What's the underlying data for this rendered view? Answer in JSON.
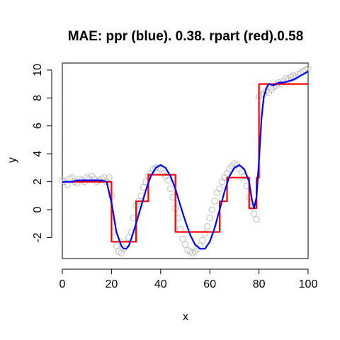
{
  "chart_data": {
    "type": "scatter",
    "title": "MAE: ppr (blue). 0.38.  rpart (red).0.58",
    "xlabel": "x",
    "ylabel": "y",
    "xlim": [
      0,
      100
    ],
    "ylim": [
      -3.5,
      10.5
    ],
    "xticks": [
      0,
      20,
      40,
      60,
      80,
      100
    ],
    "yticks": [
      -2,
      0,
      2,
      4,
      6,
      8,
      10
    ],
    "grid": false,
    "legend": "none",
    "series": [
      {
        "kind": "points",
        "color": "#bebebe",
        "x": [
          0,
          1,
          2,
          3,
          4,
          5,
          6,
          7,
          8,
          9,
          10,
          11,
          12,
          13,
          14,
          15,
          16,
          17,
          18,
          19,
          20,
          21,
          22,
          23,
          24,
          25,
          26,
          27,
          28,
          29,
          30,
          31,
          32,
          33,
          34,
          35,
          36,
          37,
          38,
          39,
          40,
          41,
          42,
          43,
          44,
          45,
          46,
          47,
          48,
          49,
          50,
          51,
          52,
          53,
          54,
          55,
          56,
          57,
          58,
          59,
          60,
          61,
          62,
          63,
          64,
          65,
          66,
          67,
          68,
          69,
          70,
          71,
          72,
          73,
          74,
          75,
          76,
          77,
          78,
          79,
          80,
          81,
          82,
          83,
          84,
          85,
          86,
          87,
          88,
          89,
          90,
          91,
          92,
          93,
          94,
          95,
          96,
          97,
          98,
          99,
          100
        ],
        "y": [
          2.1,
          2.0,
          1.8,
          2.2,
          2.3,
          2.0,
          1.9,
          2.2,
          2.1,
          2.0,
          2.3,
          2.2,
          2.4,
          2.2,
          2.0,
          2.1,
          2.2,
          2.3,
          2.0,
          2.3,
          1.0,
          -1.6,
          -2.6,
          -3.0,
          -3.1,
          -2.8,
          -2.4,
          -2.0,
          -1.6,
          -0.6,
          0.3,
          0.6,
          1.0,
          1.6,
          2.0,
          2.4,
          2.6,
          2.9,
          3.0,
          3.0,
          2.9,
          2.6,
          2.4,
          2.1,
          1.5,
          0.9,
          0.1,
          -0.6,
          -1.4,
          -2.1,
          -2.5,
          -2.9,
          -3.0,
          -3.1,
          -3.0,
          -2.8,
          -2.6,
          -2.2,
          -1.7,
          -1.2,
          -0.6,
          0.0,
          0.6,
          1.2,
          1.5,
          2.0,
          2.3,
          2.6,
          2.9,
          3.1,
          3.3,
          3.2,
          2.9,
          2.7,
          2.4,
          1.7,
          0.9,
          0.2,
          -0.3,
          -0.7,
          8.1,
          8.2,
          8.3,
          8.5,
          8.4,
          8.6,
          8.8,
          8.9,
          9.1,
          9.0,
          9.2,
          9.4,
          9.3,
          9.5,
          9.6,
          9.5,
          9.7,
          9.8,
          9.9,
          10.0,
          10.1
        ]
      },
      {
        "kind": "line",
        "name": "ppr",
        "color": "#0000ff",
        "x": [
          0,
          2,
          4,
          6,
          8,
          10,
          12,
          14,
          16,
          18,
          20,
          22,
          24,
          25,
          26,
          27,
          28,
          30,
          32,
          34,
          36,
          38,
          40,
          42,
          44,
          46,
          48,
          50,
          52,
          54,
          56,
          58,
          60,
          62,
          64,
          66,
          68,
          70,
          72,
          74,
          76,
          77,
          78,
          79,
          80,
          81,
          82,
          83,
          84,
          86,
          88,
          90,
          92,
          94,
          96,
          98,
          100
        ],
        "y": [
          2.0,
          2.0,
          2.0,
          2.1,
          2.1,
          2.1,
          2.1,
          2.1,
          2.1,
          2.0,
          0.5,
          -1.6,
          -2.6,
          -2.8,
          -2.8,
          -2.6,
          -2.1,
          -1.0,
          0.2,
          1.4,
          2.4,
          3.0,
          3.2,
          3.0,
          2.4,
          1.5,
          0.3,
          -0.8,
          -1.8,
          -2.5,
          -2.8,
          -2.8,
          -2.3,
          -1.3,
          0.0,
          1.3,
          2.4,
          3.0,
          3.2,
          2.9,
          2.0,
          0.8,
          0.1,
          0.9,
          3.5,
          6.5,
          8.1,
          8.7,
          9.0,
          8.9,
          9.1,
          9.1,
          9.2,
          9.3,
          9.5,
          9.7,
          9.9
        ]
      },
      {
        "kind": "step",
        "name": "rpart",
        "color": "#ff0000",
        "x": [
          0,
          20,
          20,
          30,
          30,
          35,
          35,
          46,
          46,
          64,
          64,
          67,
          67,
          76,
          76,
          79,
          79,
          80,
          80,
          100
        ],
        "y": [
          2.0,
          2.0,
          -2.3,
          -2.3,
          0.6,
          0.6,
          2.5,
          2.5,
          -1.6,
          -1.6,
          0.6,
          0.6,
          2.3,
          2.3,
          0.1,
          0.1,
          2.3,
          2.3,
          9.0,
          9.0
        ]
      }
    ]
  }
}
